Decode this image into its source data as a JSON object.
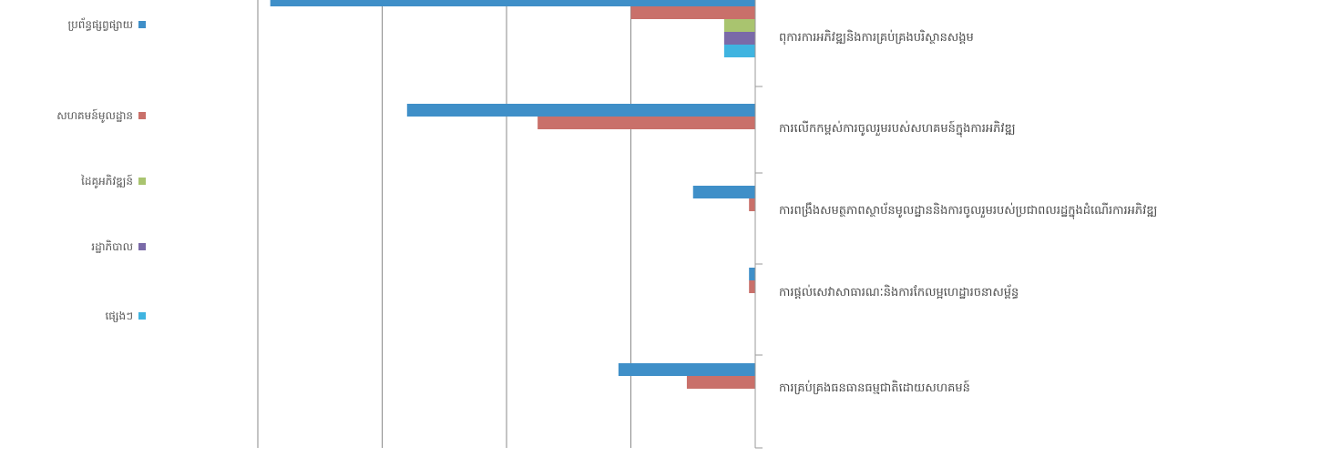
{
  "chart_data": {
    "type": "bar",
    "orientation": "horizontal",
    "categories": [
      "ពុការការអភិវឌ្ឍនិងការគ្រប់គ្រងបរិស្ថានសង្គម",
      "ការលើកកម្ពស់ការចូលរួមរបស់សហគមន៍ក្នុងការអភិវឌ្ឍ",
      "ការពង្រឹងសមត្ថភាពស្ថាប័នមូលដ្ឋាននិងការចូលរួមរបស់ប្រជាពលរដ្ឋក្នុងដំណើរការអភិវឌ្ឍ",
      "ការផ្តល់សេវាសាធារណៈនិងការកែលម្អហេដ្ឋារចនាសម្ព័ន្ធ",
      "ការគ្រប់គ្រងធនធានធម្មជាតិដោយសហគមន៍"
    ],
    "series": [
      {
        "name": "ប្រព័ន្ធផ្សព្វផ្សាយ",
        "color": "#3f8fc8",
        "values": [
          -3.9,
          -2.8,
          -0.5,
          -0.05,
          -1.1
        ]
      },
      {
        "name": "សហគមន៍មូលដ្ឋាន",
        "color": "#c9706a",
        "values": [
          -1.0,
          -1.75,
          -0.05,
          -0.05,
          -0.55
        ]
      },
      {
        "name": "ដៃគូអភិវឌ្ឍន៍",
        "color": "#a9c46f",
        "values": [
          -0.25,
          0,
          0,
          0,
          0
        ]
      },
      {
        "name": "រដ្ឋាភិបាល",
        "color": "#7a6aa8",
        "values": [
          -0.25,
          0,
          0,
          0,
          0
        ]
      },
      {
        "name": "ផ្សេងៗ",
        "color": "#3fb4e0",
        "values": [
          -0.25,
          0,
          0,
          0,
          0
        ]
      }
    ],
    "xlim": [
      -4,
      0
    ],
    "gridlines": [
      -4,
      -3,
      -2,
      -1,
      0
    ],
    "legend_position": "left",
    "grid": true
  },
  "colors": {
    "grid": "#8a8a8a",
    "axis": "#9a9a9a",
    "label": "#4a4a4a"
  }
}
